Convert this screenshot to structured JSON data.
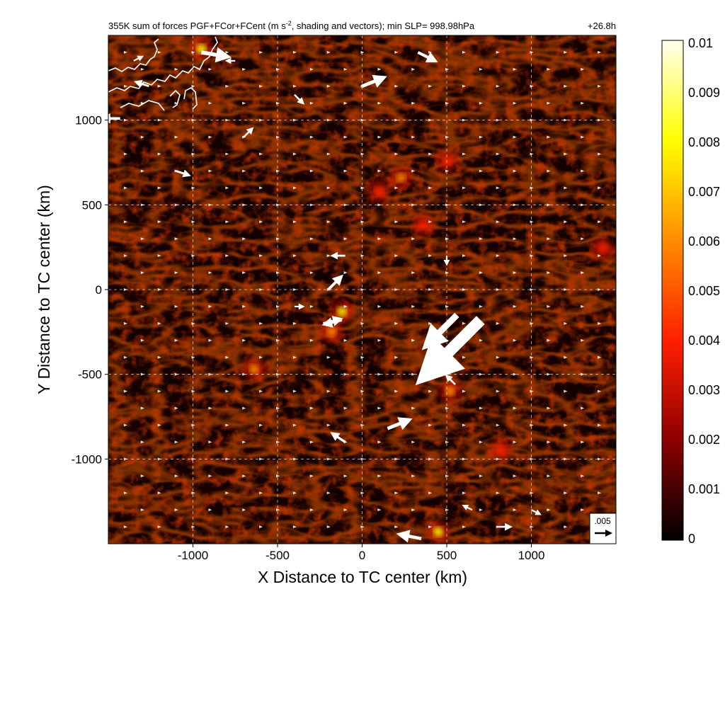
{
  "chart_data": {
    "type": "heatmap",
    "title": "355K sum of forces PGF+FCor+FCent (m s",
    "title_sup": "-2",
    "title_tail": ", shading and vectors); min SLP= 998.98hPa",
    "time_label": "+26.8h",
    "xlabel": "X Distance to TC center (km)",
    "ylabel": "Y Distance to TC center (km)",
    "xlim": [
      -1500,
      1500
    ],
    "ylim": [
      -1500,
      1500
    ],
    "x_ticks": [
      -1000,
      -500,
      0,
      500,
      1000
    ],
    "y_ticks": [
      -1000,
      -500,
      0,
      500,
      1000
    ],
    "x_tick_labels": [
      "-1000",
      "-500",
      "0",
      "500",
      "1000"
    ],
    "y_tick_labels": [
      "-1000",
      "-500",
      "0",
      "500",
      "1000"
    ],
    "grid": true,
    "colorbar": {
      "min": 0,
      "max": 0.01,
      "tick_values": [
        0,
        0.001,
        0.002,
        0.003,
        0.004,
        0.005,
        0.006,
        0.007,
        0.008,
        0.009,
        0.01
      ],
      "tick_labels": [
        "0",
        "0.001",
        "0.002",
        "0.003",
        "0.004",
        "0.005",
        "0.006",
        "0.007",
        "0.008",
        "0.009",
        "0.01"
      ],
      "colors": [
        "#000000",
        "#8b0000",
        "#ff2000",
        "#ff8c00",
        "#ffff00",
        "#fffff0"
      ]
    },
    "reference_vector": {
      "label": ".005",
      "magnitude": 0.005,
      "direction": "east"
    },
    "hotspots": [
      {
        "x": -120,
        "y": -130,
        "value": 0.0085
      },
      {
        "x": -180,
        "y": -250,
        "value": 0.005
      },
      {
        "x": 230,
        "y": 660,
        "value": 0.006
      },
      {
        "x": 100,
        "y": 580,
        "value": 0.004
      },
      {
        "x": 520,
        "y": -600,
        "value": 0.006
      },
      {
        "x": 820,
        "y": -950,
        "value": 0.004
      },
      {
        "x": 450,
        "y": -1430,
        "value": 0.007
      },
      {
        "x": -950,
        "y": 1420,
        "value": 0.008
      },
      {
        "x": 360,
        "y": 380,
        "value": 0.004
      },
      {
        "x": 500,
        "y": 760,
        "value": 0.004
      },
      {
        "x": -640,
        "y": -470,
        "value": 0.006
      },
      {
        "x": 1420,
        "y": 240,
        "value": 0.004
      }
    ],
    "vectors": [
      {
        "x": -950,
        "y": 1400,
        "u": 0.006,
        "v": -0.001
      },
      {
        "x": 0,
        "y": 1200,
        "u": 0.005,
        "v": 0.002
      },
      {
        "x": 330,
        "y": 1400,
        "u": 0.004,
        "v": -0.002
      },
      {
        "x": -1430,
        "y": 1010,
        "u": -0.004,
        "v": 0.0
      },
      {
        "x": -1260,
        "y": 1200,
        "u": -0.003,
        "v": 0.001
      },
      {
        "x": -200,
        "y": 0,
        "u": 0.003,
        "v": 0.003
      },
      {
        "x": -120,
        "y": -180,
        "u": -0.004,
        "v": -0.001
      },
      {
        "x": -230,
        "y": -200,
        "u": 0.004,
        "v": 0.001
      },
      {
        "x": -100,
        "y": 200,
        "u": -0.003,
        "v": 0.0
      },
      {
        "x": 560,
        "y": -150,
        "u": -0.007,
        "v": -0.007
      },
      {
        "x": 700,
        "y": -180,
        "u": -0.013,
        "v": -0.013
      },
      {
        "x": 150,
        "y": -820,
        "u": 0.005,
        "v": 0.002
      },
      {
        "x": -100,
        "y": -900,
        "u": -0.003,
        "v": 0.002
      },
      {
        "x": 350,
        "y": -1470,
        "u": -0.005,
        "v": 0.001
      },
      {
        "x": 800,
        "y": -1400,
        "u": 0.003,
        "v": 0.0
      },
      {
        "x": 550,
        "y": -560,
        "u": -0.002,
        "v": 0.002
      },
      {
        "x": -1100,
        "y": 700,
        "u": 0.003,
        "v": -0.001
      },
      {
        "x": -400,
        "y": 1150,
        "u": 0.002,
        "v": -0.002
      },
      {
        "x": -700,
        "y": 900,
        "u": 0.002,
        "v": 0.002
      },
      {
        "x": 500,
        "y": 200,
        "u": 0.0,
        "v": -0.002
      },
      {
        "x": -400,
        "y": -100,
        "u": 0.002,
        "v": 0.0
      },
      {
        "x": -750,
        "y": 1350,
        "u": -0.002,
        "v": 0.0
      },
      {
        "x": -1350,
        "y": 1350,
        "u": 0.002,
        "v": 0.001
      },
      {
        "x": 1000,
        "y": -1300,
        "u": 0.002,
        "v": -0.001
      },
      {
        "x": 650,
        "y": -1300,
        "u": -0.002,
        "v": 0.001
      }
    ]
  }
}
